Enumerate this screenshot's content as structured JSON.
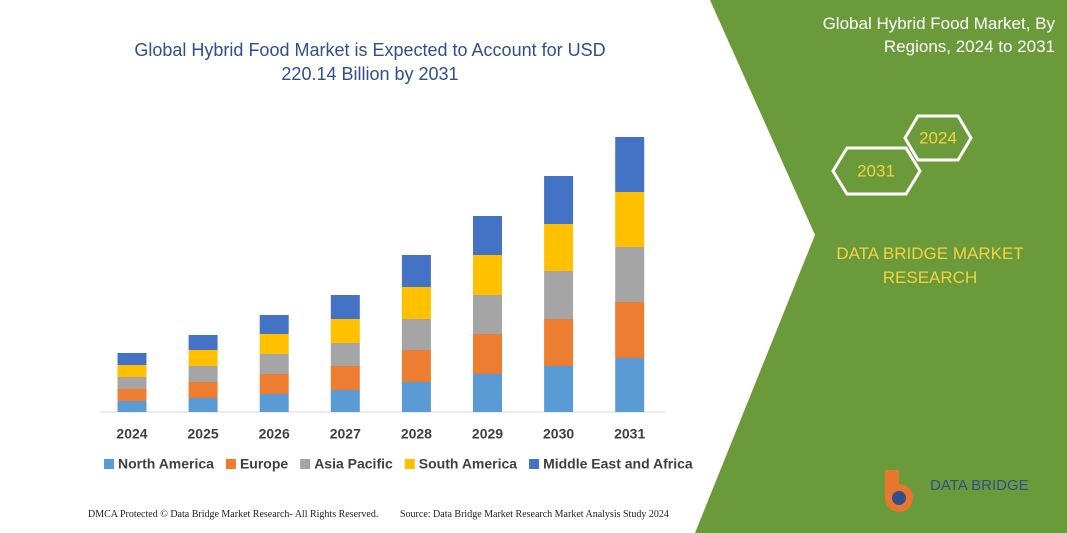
{
  "chart_data": {
    "type": "bar",
    "stacked": true,
    "title": "Global Hybrid Food Market is Expected to Account for USD 220.14 Billion by 2031",
    "categories": [
      "2024",
      "2025",
      "2026",
      "2027",
      "2028",
      "2029",
      "2030",
      "2031"
    ],
    "series": [
      {
        "name": "North America",
        "color": "#5b9bd5",
        "values": [
          11,
          14,
          18,
          22,
          30,
          38,
          46,
          54
        ]
      },
      {
        "name": "Europe",
        "color": "#ed7d31",
        "values": [
          12,
          16,
          20,
          24,
          32,
          40,
          47,
          56
        ]
      },
      {
        "name": "Asia Pacific",
        "color": "#a5a5a5",
        "values": [
          12,
          16,
          20,
          23,
          31,
          39,
          48,
          55
        ]
      },
      {
        "name": "South America",
        "color": "#ffc000",
        "values": [
          12,
          16,
          20,
          24,
          32,
          40,
          47,
          55
        ]
      },
      {
        "name": "Middle East and Africa",
        "color": "#4472c4",
        "values": [
          12,
          15,
          19,
          24,
          32,
          39,
          48,
          55
        ]
      }
    ]
  },
  "panel": {
    "title": "Global Hybrid Food Market, By Regions, 2024 to 2031",
    "hex_right": "2024",
    "hex_left": "2031",
    "brand": "DATA BRIDGE MARKET RESEARCH",
    "logo": "DATA BRIDGE"
  },
  "footer": {
    "left": "DMCA Protected © Data Bridge Market Research- All Rights Reserved.",
    "right": "Source: Data Bridge Market Research Market Analysis Study 2024"
  }
}
